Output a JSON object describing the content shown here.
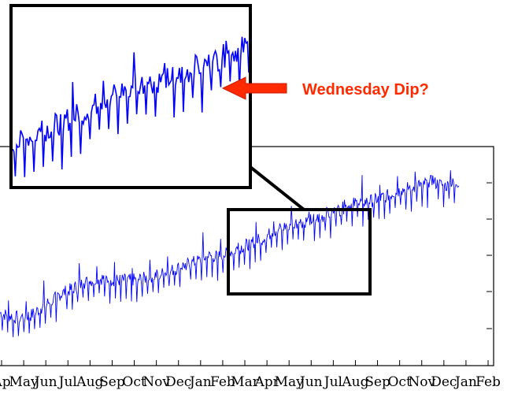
{
  "chart_data": {
    "type": "line",
    "title": "",
    "xlabel": "",
    "ylabel": "",
    "tick_labels": [
      "Ap",
      "May",
      "Jun",
      "Jul",
      "Aug",
      "Sep",
      "Oct",
      "Nov",
      "Dec",
      "Jan",
      "Feb",
      "Mar",
      "Apr",
      "May",
      "Jun",
      "Jul",
      "Aug",
      "Sep",
      "Oct",
      "Nov",
      "Dec",
      "Jan",
      "Feb"
    ],
    "ylim": [
      0,
      100
    ],
    "grid": false,
    "legend": "none",
    "series": [
      {
        "color": "#0000ff",
        "trend": [
          [
            0,
            24
          ],
          [
            20,
            22
          ],
          [
            40,
            23
          ],
          [
            60,
            28
          ],
          [
            80,
            33
          ],
          [
            100,
            36
          ],
          [
            110,
            38
          ],
          [
            130,
            40
          ],
          [
            150,
            39
          ],
          [
            170,
            39
          ],
          [
            190,
            40
          ],
          [
            200,
            41
          ],
          [
            220,
            43
          ],
          [
            240,
            46
          ],
          [
            260,
            48
          ],
          [
            270,
            50
          ],
          [
            290,
            50
          ],
          [
            300,
            52
          ],
          [
            320,
            55
          ],
          [
            340,
            58
          ],
          [
            360,
            62
          ],
          [
            380,
            65
          ],
          [
            400,
            66
          ],
          [
            420,
            68
          ],
          [
            440,
            71
          ],
          [
            460,
            74
          ],
          [
            480,
            75
          ],
          [
            500,
            77
          ],
          [
            520,
            80
          ],
          [
            540,
            82
          ],
          [
            560,
            84
          ],
          [
            580,
            82
          ],
          [
            597,
            84
          ]
        ],
        "weekly_dip_depth": 9,
        "days_per_week": 7
      }
    ],
    "inset": {
      "zoom_region_x": [
        288,
        465
      ],
      "zoom_region_y": [
        52,
        80
      ],
      "annotation": "Wednesday Dip?"
    }
  }
}
